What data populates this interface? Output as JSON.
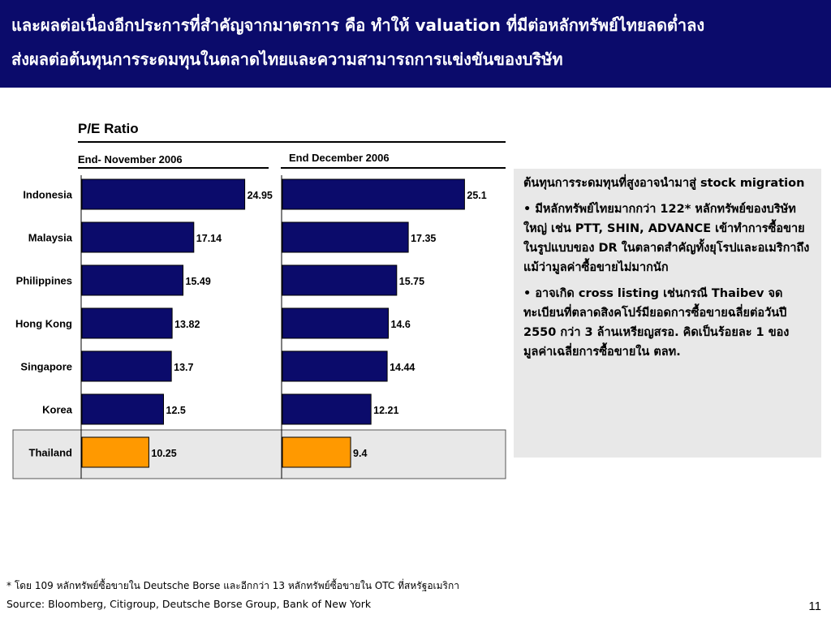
{
  "header": {
    "line1": "และผลต่อเนื่องอีกประการที่สำคัญจากมาตรการ คือ ทำให้ valuation ที่มีต่อหลักทรัพย์ไทยลดต่ำลง",
    "line2": "ส่งผลต่อต้นทุนการระดมทุนในตลาดไทยและความสามารถการแข่งขันของบริษัท"
  },
  "colors": {
    "header_bg": "#0b0b6b",
    "bar": "#0b0b6b",
    "highlight_bar": "#ff9900",
    "highlight_bg": "#e8e8e8"
  },
  "chart_data": {
    "type": "bar",
    "orientation": "horizontal",
    "title": "P/E Ratio",
    "categories": [
      "Indonesia",
      "Malaysia",
      "Philippines",
      "Hong Kong",
      "Singapore",
      "Korea",
      "Thailand"
    ],
    "highlight": "Thailand",
    "series": [
      {
        "name": "End- November 2006",
        "values": [
          24.95,
          17.14,
          15.49,
          13.82,
          13.7,
          12.5,
          10.25
        ],
        "labels": [
          "24.95",
          "17.14",
          "15.49",
          "13.82",
          "13.7",
          "12.5",
          "10.25"
        ]
      },
      {
        "name": "End December 2006",
        "values": [
          25.1,
          17.35,
          15.75,
          14.6,
          14.44,
          12.21,
          9.4
        ],
        "labels": [
          "25.1",
          "17.35",
          "15.75",
          "14.6",
          "14.44",
          "12.21",
          "9.4"
        ]
      }
    ]
  },
  "sidebar": {
    "p1": "ต้นทุนการระดมทุนที่สูงอาจนำมาสู่ stock migration",
    "p2": "• มีหลักทรัพย์ไทยมากกว่า 122* หลักทรัพย์ของบริษัทใหญ่ เช่น PTT, SHIN, ADVANCE เข้าทำการซื้อขายในรูปแบบของ DR ในตลาดสำคัญทั้งยุโรปและอเมริกาถึงแม้ว่ามูลค่าซื้อขายไม่มากนัก",
    "p3": "• อาจเกิด cross listing เช่นกรณี Thaibev จดทะเบียนที่ตลาดสิงคโปร์มียอดการซื้อขายฉลี่ยต่อวันปี 2550 กว่า 3 ล้านเหรียญสรอ. คิดเป็นร้อยละ 1 ของมูลค่าเฉลี่ยการซื้อขายใน ตลท."
  },
  "footnote": "* โดย 109 หลักทรัพย์ซื้อขายใน Deutsche Borse และอีกกว่า 13 หลักทรัพย์ซื้อขายใน OTC ที่สหรัฐอเมริกา",
  "source": "Source: Bloomberg, Citigroup, Deutsche Borse Group, Bank of New York",
  "page_number": "11"
}
